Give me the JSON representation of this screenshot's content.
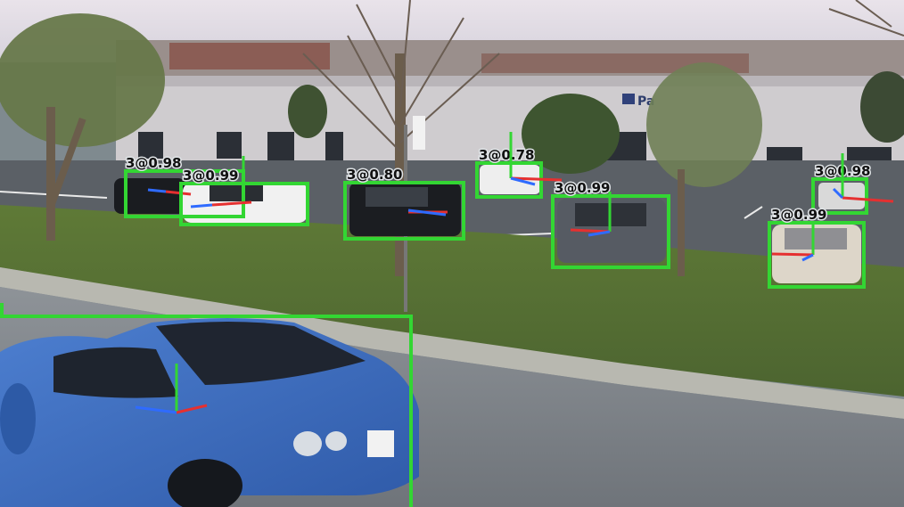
{
  "image": {
    "description_free": true
  },
  "building": {
    "sign_text": "Pa"
  },
  "colors": {
    "box": "#33d633",
    "axis_x": "#e53030",
    "axis_y": "#2f6bff",
    "axis_z": "#33d633"
  },
  "detections": [
    {
      "label": "3@0.98"
    },
    {
      "label": "3@0.99"
    },
    {
      "label": "3@0.80"
    },
    {
      "label": "3@0.78"
    },
    {
      "label": "3@0.99"
    },
    {
      "label": "3@0.98"
    },
    {
      "label": "3@0.99"
    },
    {
      "label": ""
    }
  ]
}
